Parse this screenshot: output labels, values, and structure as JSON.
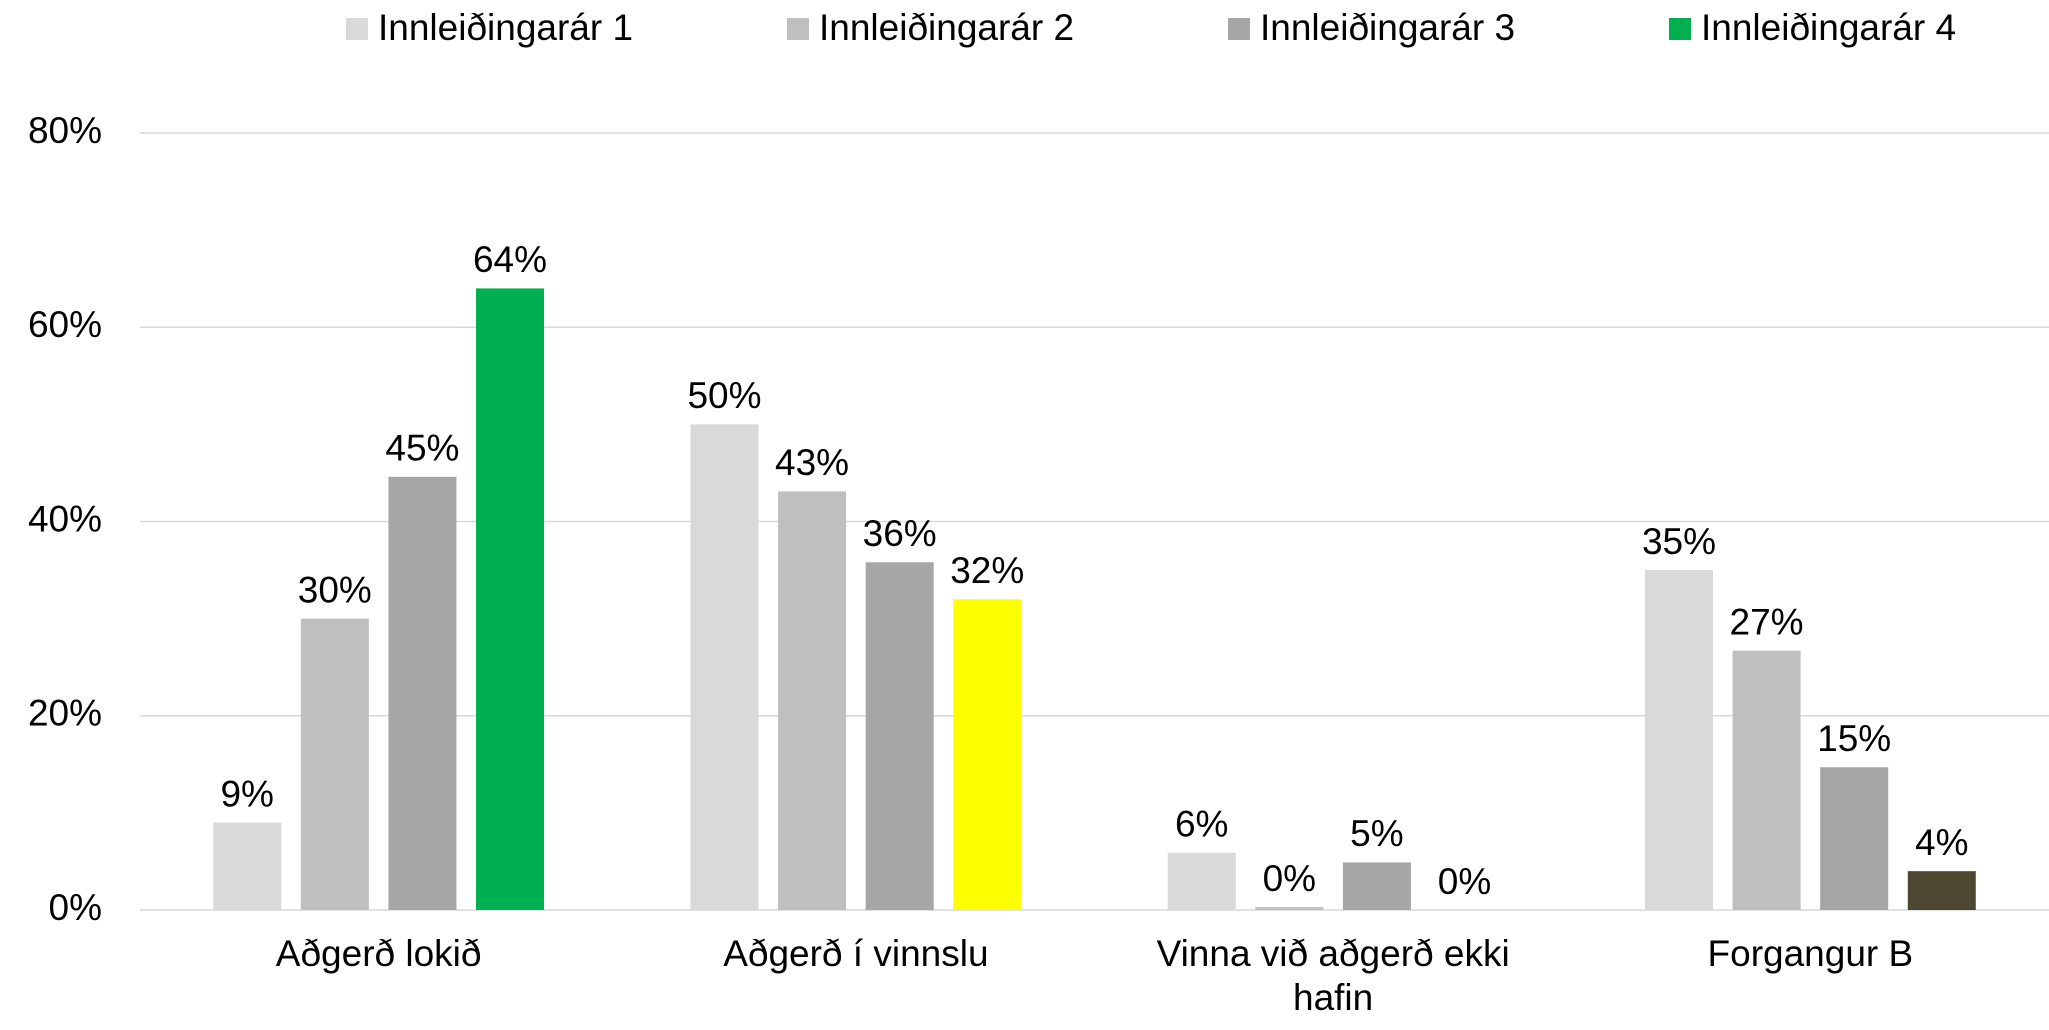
{
  "chart_data": {
    "type": "bar",
    "categories": [
      "Aðgerð lokið",
      "Aðgerð í vinnslu",
      "Vinna við aðgerð ekki hafin",
      "Forgangur B"
    ],
    "series": [
      {
        "name": "Innleiðingarár 1",
        "color": "#d9d9d9",
        "values": [
          9,
          50,
          5.9,
          35
        ],
        "value_labels": [
          "9%",
          "50%",
          "6%",
          "35%"
        ]
      },
      {
        "name": "Innleiðingarár 2",
        "color": "#bfbfbf",
        "values": [
          30,
          43.1,
          0.3,
          26.7
        ],
        "value_labels": [
          "30%",
          "43%",
          "0%",
          "27%"
        ]
      },
      {
        "name": "Innleiðingarár 3",
        "color": "#a6a6a6",
        "values": [
          44.6,
          35.8,
          4.9,
          14.7
        ],
        "value_labels": [
          "45%",
          "36%",
          "5%",
          "15%"
        ]
      },
      {
        "name": "Innleiðingarár 4",
        "color": "#00b050",
        "colors": [
          "#00b050",
          "#ffff00",
          "#00b050",
          "#4d4630"
        ],
        "values": [
          64,
          32,
          0,
          4
        ],
        "value_labels": [
          "64%",
          "32%",
          "0%",
          "4%"
        ]
      }
    ],
    "ylim": [
      0,
      80
    ],
    "yticks": [
      {
        "value": 0,
        "label": "0%"
      },
      {
        "value": 20,
        "label": "20%"
      },
      {
        "value": 40,
        "label": "40%"
      },
      {
        "value": 60,
        "label": "60%"
      },
      {
        "value": 80,
        "label": "80%"
      }
    ],
    "grid": true,
    "legend": "top"
  }
}
